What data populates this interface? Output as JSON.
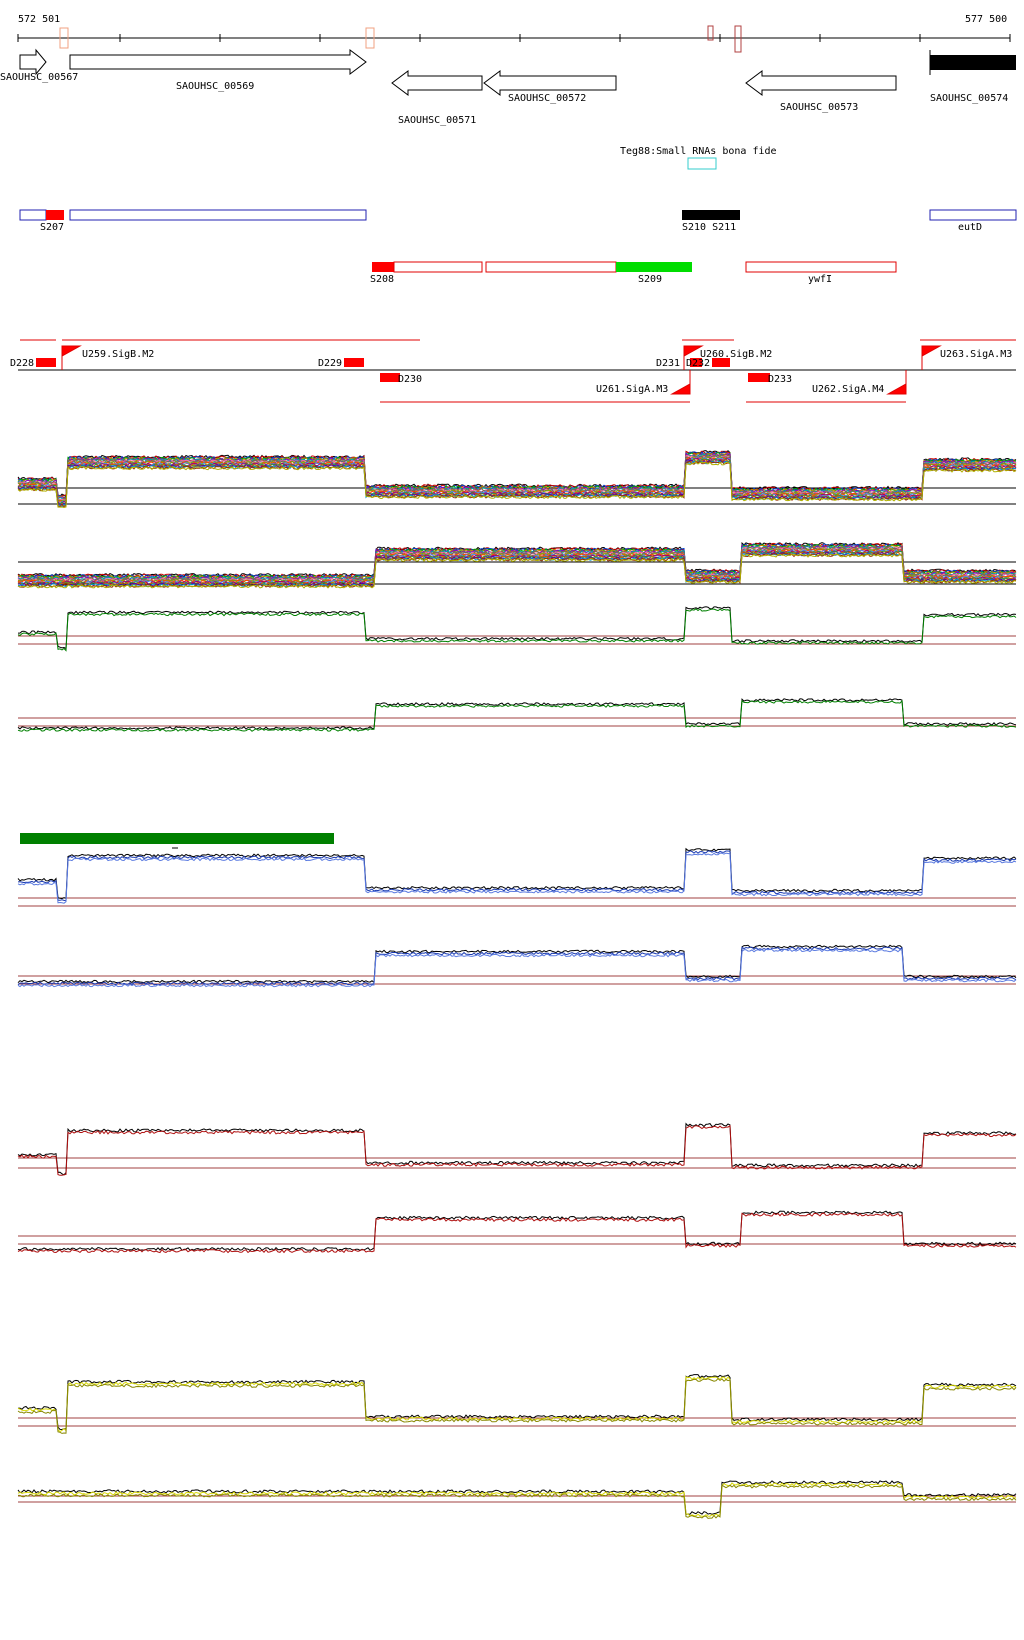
{
  "ruler": {
    "start": "572 501",
    "end": "577 500"
  },
  "genes": [
    {
      "label": "SAOUHSC_00567",
      "strand": "+"
    },
    {
      "label": "SAOUHSC_00569",
      "strand": "+"
    },
    {
      "label": "SAOUHSC_00571",
      "strand": "-"
    },
    {
      "label": "SAOUHSC_00572",
      "strand": "-"
    },
    {
      "label": "SAOUHSC_00573",
      "strand": "-"
    },
    {
      "label": "SAOUHSC_00574",
      "strand": "+"
    }
  ],
  "small_rna": {
    "label": "Teg88:Small RNAs bona fide",
    "color": "#33cccc"
  },
  "segments_plus": [
    "S207",
    "S210 S211",
    "eutD"
  ],
  "segments_minus": [
    "S208",
    "S209",
    "ywfI"
  ],
  "promoters": [
    "D228",
    "U259.SigB.M2",
    "D229",
    "D230",
    "D231",
    "D232",
    "U260.SigB.M2",
    "U261.SigA.M3",
    "D233",
    "U262.SigA.M4",
    "U263.SigA.M3"
  ],
  "colors": {
    "gene_outline": "#000000",
    "plus_segment": "#2020b0",
    "minus_segment": "#e00000",
    "highlight_green": "#00dd00",
    "track_green": "#008000",
    "track_blue": "#1a3ab0",
    "track_red": "#b01010",
    "track_yellow": "#d8d800",
    "threshold": "#a04040"
  }
}
